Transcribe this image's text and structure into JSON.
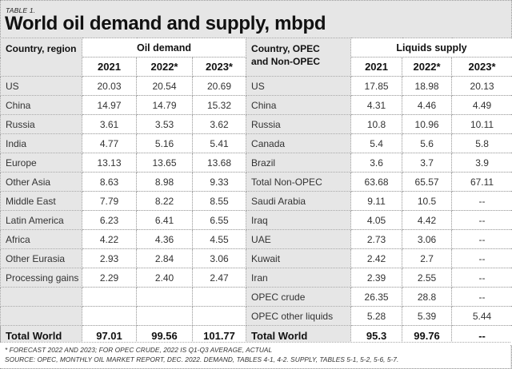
{
  "header": {
    "table_label": "TABLE 1.",
    "title": "World oil demand and supply, mbpd"
  },
  "demand": {
    "label_header": "Country, region",
    "group_header": "Oil demand",
    "years": [
      "2021",
      "2022*",
      "2023*"
    ],
    "rows": [
      {
        "label": "US",
        "values": [
          "20.03",
          "20.54",
          "20.69"
        ]
      },
      {
        "label": "China",
        "values": [
          "14.97",
          "14.79",
          "15.32"
        ]
      },
      {
        "label": "Russia",
        "values": [
          "3.61",
          "3.53",
          "3.62"
        ]
      },
      {
        "label": "India",
        "values": [
          "4.77",
          "5.16",
          "5.41"
        ]
      },
      {
        "label": "Europe",
        "values": [
          "13.13",
          "13.65",
          "13.68"
        ]
      },
      {
        "label": "Other Asia",
        "values": [
          "8.63",
          "8.98",
          "9.33"
        ]
      },
      {
        "label": "Middle East",
        "values": [
          "7.79",
          "8.22",
          "8.55"
        ]
      },
      {
        "label": "Latin America",
        "values": [
          "6.23",
          "6.41",
          "6.55"
        ]
      },
      {
        "label": "Africa",
        "values": [
          "4.22",
          "4.36",
          "4.55"
        ]
      },
      {
        "label": "Other Eurasia",
        "values": [
          "2.93",
          "2.84",
          "3.06"
        ]
      },
      {
        "label": "Processing gains",
        "values": [
          "2.29",
          "2.40",
          "2.47"
        ]
      },
      {
        "label": "",
        "values": [
          "",
          "",
          ""
        ]
      },
      {
        "label": "",
        "values": [
          "",
          "",
          ""
        ]
      }
    ],
    "total": {
      "label": "Total World",
      "values": [
        "97.01",
        "99.56",
        "101.77"
      ]
    }
  },
  "supply": {
    "label_header_line1": "Country, OPEC",
    "label_header_line2": "and Non-OPEC",
    "group_header": "Liquids supply",
    "years": [
      "2021",
      "2022*",
      "2023*"
    ],
    "rows": [
      {
        "label": "US",
        "values": [
          "17.85",
          "18.98",
          "20.13"
        ]
      },
      {
        "label": "China",
        "values": [
          "4.31",
          "4.46",
          "4.49"
        ]
      },
      {
        "label": "Russia",
        "values": [
          "10.8",
          "10.96",
          "10.11"
        ]
      },
      {
        "label": "Canada",
        "values": [
          "5.4",
          "5.6",
          "5.8"
        ]
      },
      {
        "label": "Brazil",
        "values": [
          "3.6",
          "3.7",
          "3.9"
        ]
      },
      {
        "label": "Total Non-OPEC",
        "values": [
          "63.68",
          "65.57",
          "67.11"
        ]
      },
      {
        "label": "Saudi Arabia",
        "values": [
          "9.11",
          "10.5",
          "--"
        ]
      },
      {
        "label": "Iraq",
        "values": [
          "4.05",
          "4.42",
          "--"
        ]
      },
      {
        "label": "UAE",
        "values": [
          "2.73",
          "3.06",
          "--"
        ]
      },
      {
        "label": "Kuwait",
        "values": [
          "2.42",
          "2.7",
          "--"
        ]
      },
      {
        "label": "Iran",
        "values": [
          "2.39",
          "2.55",
          "--"
        ]
      },
      {
        "label": "OPEC crude",
        "values": [
          "26.35",
          "28.8",
          "--"
        ]
      },
      {
        "label": "OPEC other liquids",
        "values": [
          "5.28",
          "5.39",
          "5.44"
        ]
      }
    ],
    "total": {
      "label": "Total World",
      "values": [
        "95.3",
        "99.76",
        "--"
      ]
    }
  },
  "footnote": {
    "line1": "* FORECAST 2022 AND 2023; FOR OPEC CRUDE, 2022 IS Q1-Q3 AVERAGE, ACTUAL",
    "line2": "SOURCE: OPEC, MONTHLY OIL MARKET REPORT, DEC. 2022. DEMAND, TABLES 4-1, 4-2. SUPPLY, TABLES 5-1, 5-2, 5-6, 5-7."
  }
}
